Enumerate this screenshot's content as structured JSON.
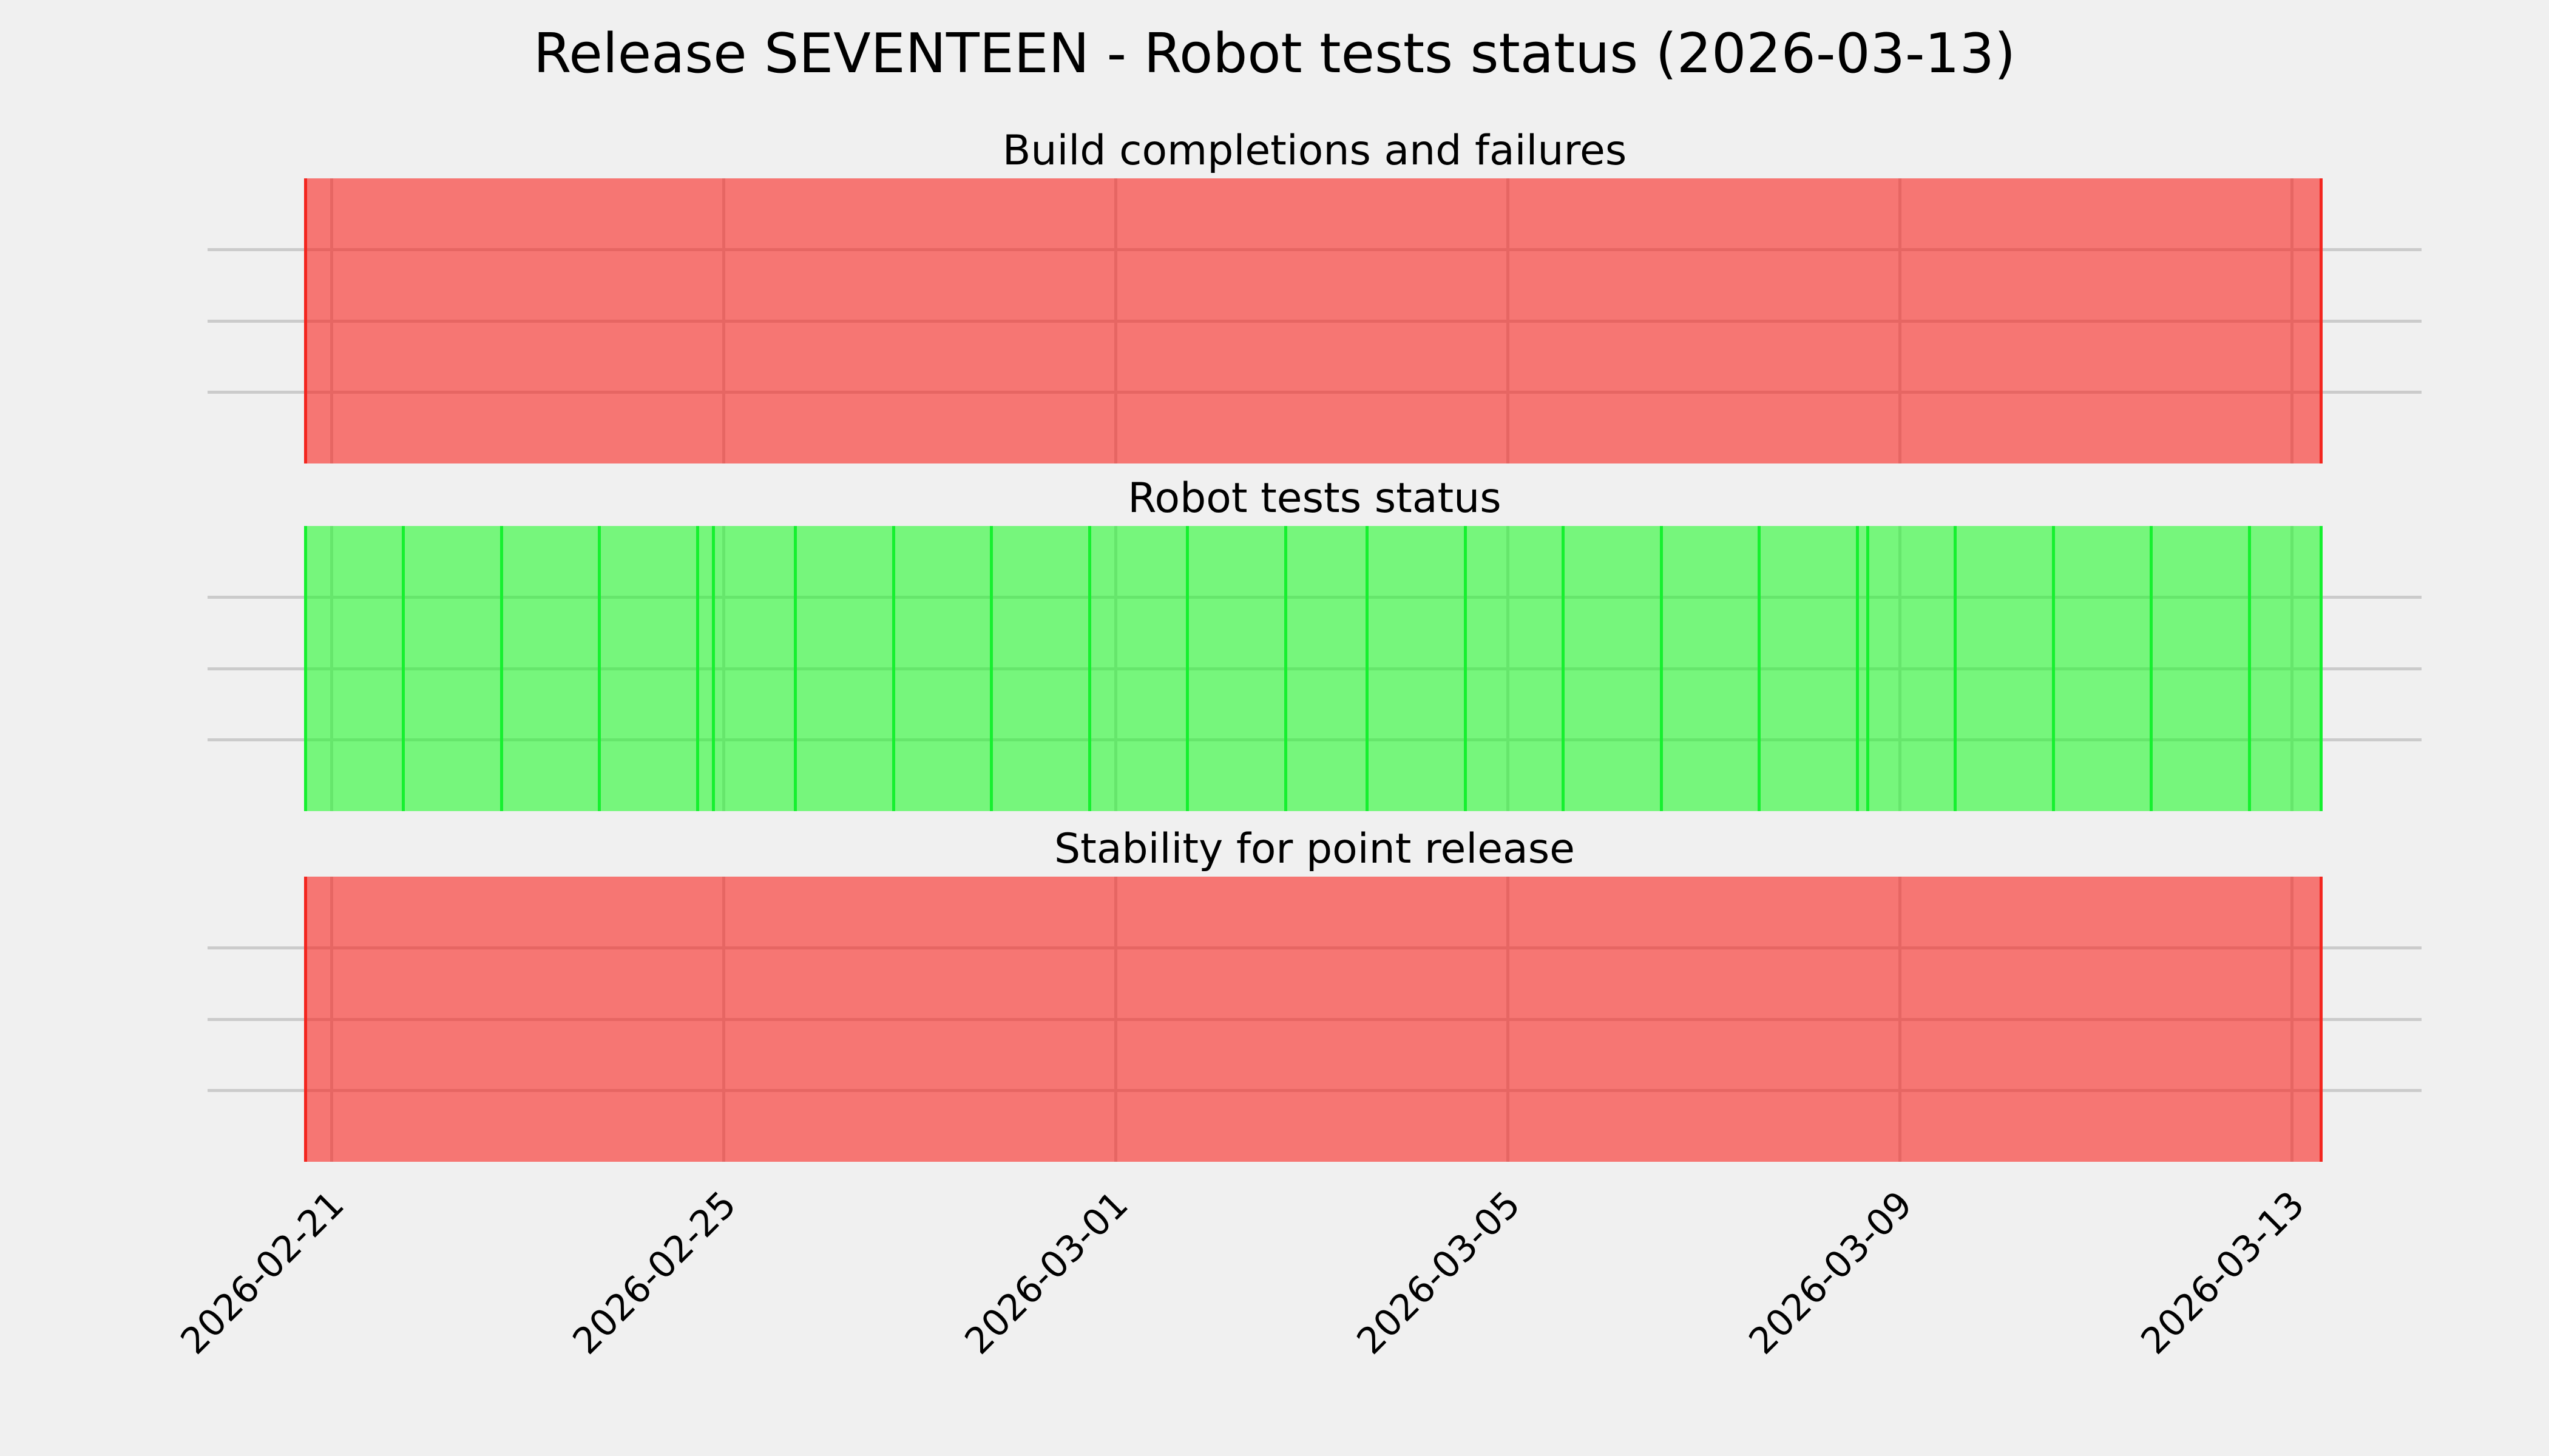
{
  "figure": {
    "title": "Release SEVENTEEN - Robot tests status (2026-03-13)",
    "background_color": "#f0f0f0",
    "grid_color": "#cbcbcb",
    "text_color": "#000000"
  },
  "status_colors": {
    "pass_fill": "rgba(25,250,35,0.57)",
    "pass_line": "#16f02f",
    "fail_fill": "rgba(250,25,20,0.57)",
    "fail_line": "#f3261f"
  },
  "time_axis": {
    "min": "2026-02-20T17:30:00",
    "max": "2026-03-13T07:00:00",
    "tick_times": [
      "2026-02-21T00:00:00",
      "2026-02-25T00:00:00",
      "2026-03-01T00:00:00",
      "2026-03-05T00:00:00",
      "2026-03-09T00:00:00",
      "2026-03-13T00:00:00"
    ],
    "tick_labels": [
      "2026-02-21",
      "2026-02-25",
      "2026-03-01",
      "2026-03-05",
      "2026-03-09",
      "2026-03-13"
    ]
  },
  "chart_data": [
    {
      "type": "area",
      "title": "Build completions and failures",
      "status": "fail",
      "span": {
        "start": "2026-02-20T17:30:00",
        "end": "2026-03-13T07:00:00",
        "status": "fail"
      },
      "events": [
        {
          "time": "2026-02-20T17:30:00",
          "status": "fail"
        },
        {
          "time": "2026-03-13T07:00:00",
          "status": "fail"
        }
      ],
      "ylim": [
        0,
        1
      ],
      "yticks": [
        0.25,
        0.5,
        0.75
      ],
      "grid": true,
      "legend": false
    },
    {
      "type": "area",
      "title": "Robot tests status",
      "status": "pass",
      "span": {
        "start": "2026-02-20T17:30:00",
        "end": "2026-03-13T07:00:00",
        "status": "pass"
      },
      "events": [
        {
          "time": "2026-02-20T17:30:00",
          "status": "pass"
        },
        {
          "time": "2026-02-21T17:30:00",
          "status": "pass"
        },
        {
          "time": "2026-02-22T17:30:00",
          "status": "pass"
        },
        {
          "time": "2026-02-23T17:30:00",
          "status": "pass"
        },
        {
          "time": "2026-02-24T17:30:00",
          "status": "pass"
        },
        {
          "time": "2026-02-24T21:30:00",
          "status": "pass"
        },
        {
          "time": "2026-02-25T17:30:00",
          "status": "pass"
        },
        {
          "time": "2026-02-26T17:30:00",
          "status": "pass"
        },
        {
          "time": "2026-02-27T17:30:00",
          "status": "pass"
        },
        {
          "time": "2026-02-28T17:30:00",
          "status": "pass"
        },
        {
          "time": "2026-03-01T17:30:00",
          "status": "pass"
        },
        {
          "time": "2026-03-02T17:30:00",
          "status": "pass"
        },
        {
          "time": "2026-03-03T13:30:00",
          "status": "pass"
        },
        {
          "time": "2026-03-04T13:30:00",
          "status": "pass"
        },
        {
          "time": "2026-03-05T13:30:00",
          "status": "pass"
        },
        {
          "time": "2026-03-06T13:30:00",
          "status": "pass"
        },
        {
          "time": "2026-03-07T13:30:00",
          "status": "pass"
        },
        {
          "time": "2026-03-08T13:30:00",
          "status": "pass"
        },
        {
          "time": "2026-03-08T16:00:00",
          "status": "pass"
        },
        {
          "time": "2026-03-09T13:30:00",
          "status": "pass"
        },
        {
          "time": "2026-03-10T13:30:00",
          "status": "pass"
        },
        {
          "time": "2026-03-11T13:30:00",
          "status": "pass"
        },
        {
          "time": "2026-03-12T13:30:00",
          "status": "pass"
        },
        {
          "time": "2026-03-13T07:00:00",
          "status": "pass"
        }
      ],
      "ylim": [
        0,
        1
      ],
      "yticks": [
        0.25,
        0.5,
        0.75
      ],
      "grid": true,
      "legend": false
    },
    {
      "type": "area",
      "title": "Stability for point release",
      "status": "fail",
      "span": {
        "start": "2026-02-20T17:30:00",
        "end": "2026-03-13T07:00:00",
        "status": "fail"
      },
      "events": [
        {
          "time": "2026-02-20T17:30:00",
          "status": "fail"
        },
        {
          "time": "2026-03-13T07:00:00",
          "status": "fail"
        }
      ],
      "ylim": [
        0,
        1
      ],
      "yticks": [
        0.25,
        0.5,
        0.75
      ],
      "grid": true,
      "legend": false
    }
  ]
}
